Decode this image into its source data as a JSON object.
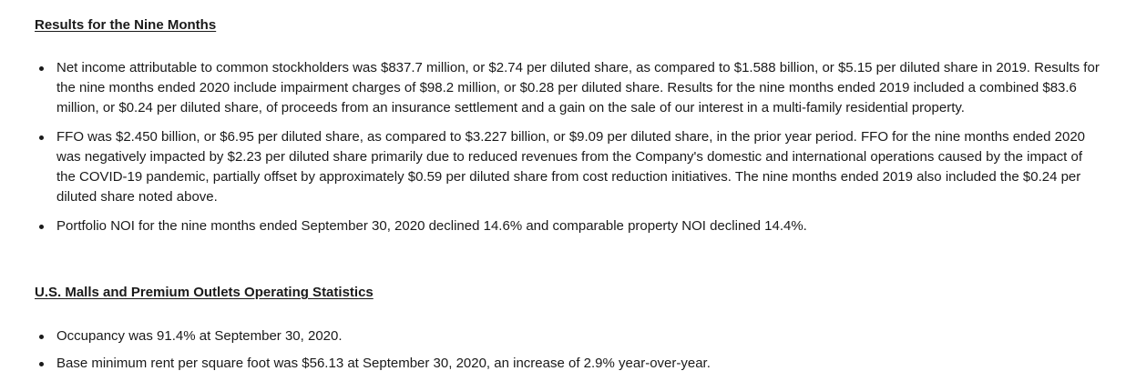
{
  "section1": {
    "heading": "Results for the Nine Months",
    "bullets": [
      "Net income attributable to common stockholders was $837.7 million, or $2.74 per diluted share, as compared to $1.588 billion, or $5.15 per diluted share in 2019. Results for the nine months ended 2020 include impairment charges of $98.2 million, or $0.28 per diluted share. Results for the nine months ended 2019 included a combined $83.6 million, or $0.24 per diluted share, of proceeds from an insurance settlement and a gain on the sale of our interest in a multi-family residential property.",
      "FFO was $2.450 billion, or $6.95 per diluted share, as compared to $3.227 billion, or $9.09 per diluted share, in the prior year period. FFO for the nine months ended 2020 was negatively impacted by $2.23 per diluted share primarily due to reduced revenues from the Company's domestic and international operations caused by the impact of the COVID-19 pandemic, partially offset by approximately $0.59 per diluted share from cost reduction initiatives. The nine months ended 2019 also included the $0.24 per diluted share noted above.",
      "Portfolio NOI for the nine months ended September 30, 2020 declined 14.6% and comparable property NOI declined 14.4%."
    ]
  },
  "section2": {
    "heading": "U.S. Malls and Premium Outlets Operating Statistics",
    "bullets": [
      "Occupancy was 91.4% at September 30, 2020.",
      "Base minimum rent per square foot was $56.13 at September 30, 2020, an increase of 2.9% year-over-year."
    ]
  }
}
